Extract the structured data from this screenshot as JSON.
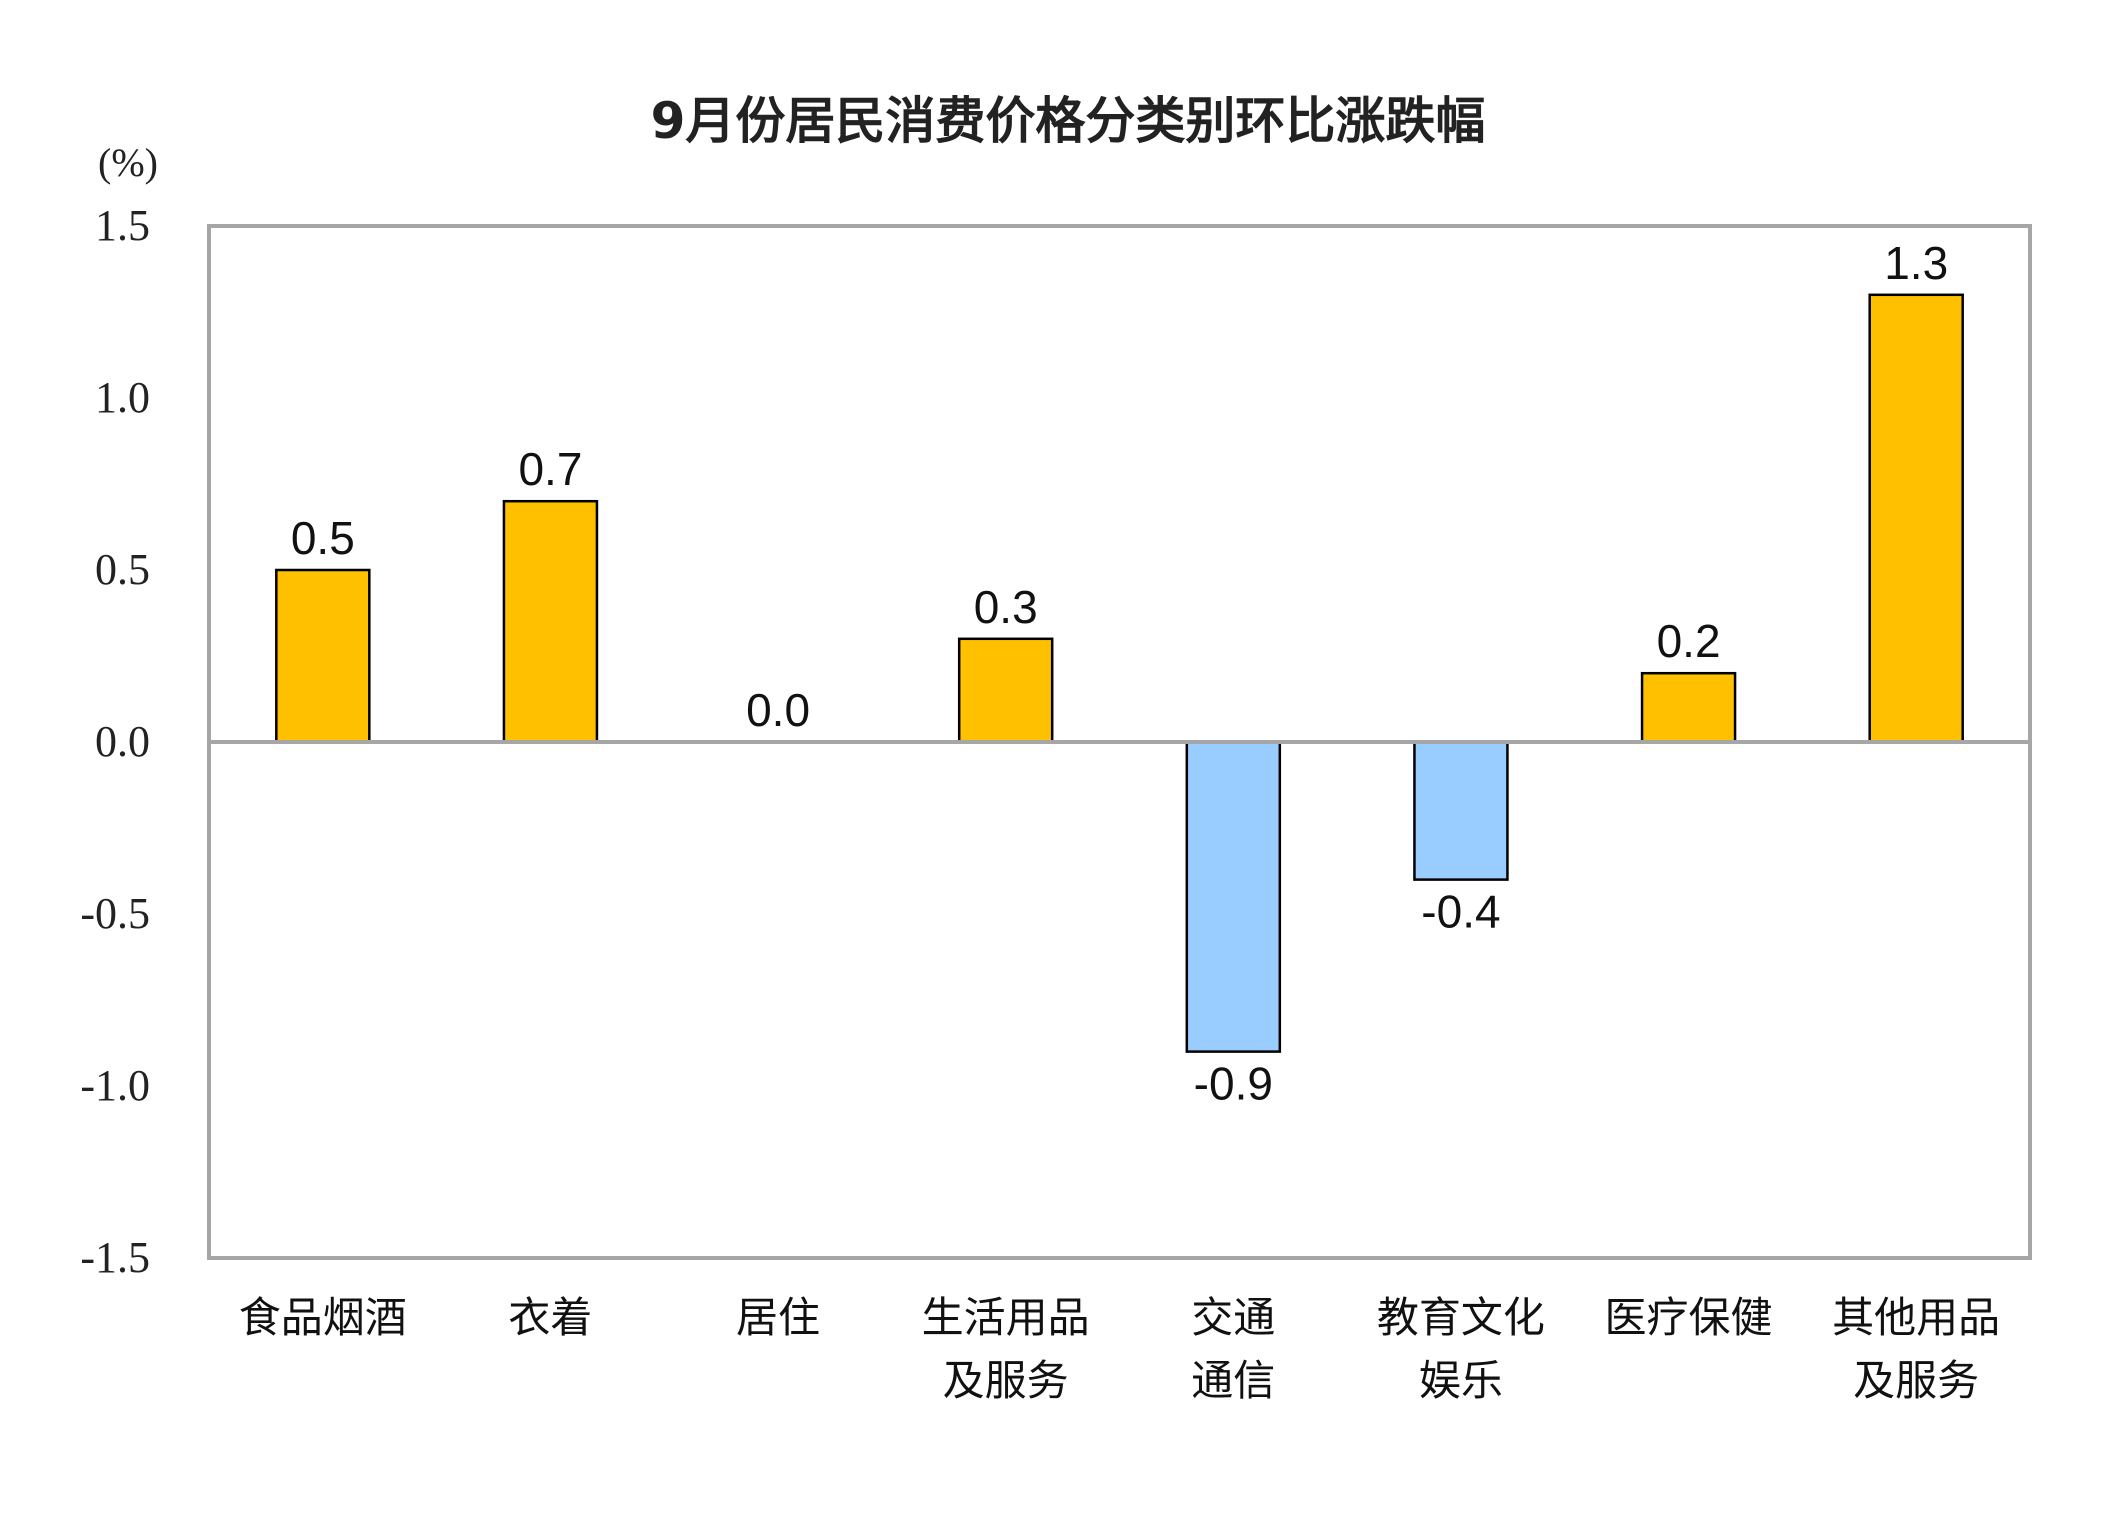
{
  "chart_data": {
    "type": "bar",
    "title": "9月份居民消费价格分类别环比涨跌幅",
    "ylabel": "(%)",
    "xlabel": "",
    "ylim": [
      -1.5,
      1.5
    ],
    "yticks": [
      "1.5",
      "1.0",
      "0.5",
      "0.0",
      "-0.5",
      "-1.0",
      "-1.5"
    ],
    "ytick_values": [
      1.5,
      1.0,
      0.5,
      0.0,
      -0.5,
      -1.0,
      -1.5
    ],
    "grid": false,
    "categories": [
      [
        "食品烟酒"
      ],
      [
        "衣着"
      ],
      [
        "居住"
      ],
      [
        "生活用品",
        "及服务"
      ],
      [
        "交通",
        "通信"
      ],
      [
        "教育文化",
        "娱乐"
      ],
      [
        "医疗保健"
      ],
      [
        "其他用品",
        "及服务"
      ]
    ],
    "values": [
      0.5,
      0.7,
      0.0,
      0.3,
      -0.9,
      -0.4,
      0.2,
      1.3
    ],
    "labels": [
      "0.5",
      "0.7",
      "0.0",
      "0.3",
      "-0.9",
      "-0.4",
      "0.2",
      "1.3"
    ],
    "colors": {
      "positive": "#FFC000",
      "negative": "#99CCFF",
      "axis": "#A6A6A6"
    }
  }
}
